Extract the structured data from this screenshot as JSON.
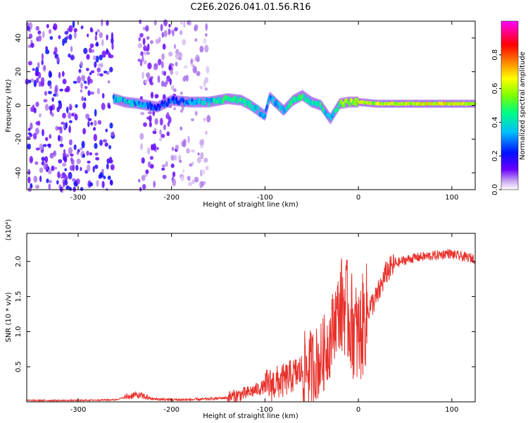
{
  "figure_title": "C2E6.2026.041.01.56.R16",
  "chart_data": [
    {
      "type": "heatmap",
      "name": "spectrogram",
      "xlabel": "Height of straight line (km)",
      "ylabel": "Frequency (Hz)",
      "xlim": [
        -355,
        125
      ],
      "ylim": [
        -50,
        50
      ],
      "xticks": [
        -300,
        -200,
        -100,
        0,
        100
      ],
      "xtick_labels": [
        "-300",
        "-200",
        "-100",
        "0",
        "100"
      ],
      "yticks": [
        -40,
        -20,
        0,
        20,
        40
      ],
      "ytick_labels": [
        "-40",
        "-20",
        "0",
        "20",
        "40"
      ],
      "colorbar": {
        "label": "Normalized spectral amplitude",
        "range": [
          0.0,
          1.0
        ],
        "ticks": [
          0.0,
          0.2,
          0.4,
          0.6,
          0.8
        ],
        "tick_labels": [
          "0.0",
          "0.2",
          "0.4",
          "0.6",
          "0.8"
        ],
        "colormap": [
          "#ffffff",
          "#b07ee8",
          "#6a00ff",
          "#0010ff",
          "#00bfff",
          "#00ff7f",
          "#7fff00",
          "#ffff00",
          "#ff7f00",
          "#ff0000",
          "#ff00ff"
        ]
      },
      "noise_regions": [
        {
          "x0": -355,
          "x1": -262,
          "amplitude": 0.25
        },
        {
          "x0": -235,
          "x1": -195,
          "amplitude": 0.18
        },
        {
          "x0": -195,
          "x1": -160,
          "amplitude": 0.1
        }
      ],
      "signal_trace": [
        {
          "x": -262,
          "f": 4,
          "amp": 0.4
        },
        {
          "x": -250,
          "f": 2,
          "amp": 0.45
        },
        {
          "x": -235,
          "f": 1,
          "amp": 0.4
        },
        {
          "x": -215,
          "f": -1,
          "amp": 0.3
        },
        {
          "x": -200,
          "f": 3,
          "amp": 0.35
        },
        {
          "x": -180,
          "f": 2,
          "amp": 0.4
        },
        {
          "x": -160,
          "f": 2,
          "amp": 0.45
        },
        {
          "x": -140,
          "f": 4,
          "amp": 0.5
        },
        {
          "x": -125,
          "f": 3,
          "amp": 0.5
        },
        {
          "x": -115,
          "f": 0,
          "amp": 0.45
        },
        {
          "x": -100,
          "f": -6,
          "amp": 0.4
        },
        {
          "x": -95,
          "f": 5,
          "amp": 0.4
        },
        {
          "x": -80,
          "f": -3,
          "amp": 0.45
        },
        {
          "x": -70,
          "f": 3,
          "amp": 0.5
        },
        {
          "x": -60,
          "f": 6,
          "amp": 0.55
        },
        {
          "x": -50,
          "f": 2,
          "amp": 0.5
        },
        {
          "x": -40,
          "f": 0,
          "amp": 0.5
        },
        {
          "x": -30,
          "f": -8,
          "amp": 0.4
        },
        {
          "x": -20,
          "f": 1,
          "amp": 0.6
        },
        {
          "x": -10,
          "f": 2,
          "amp": 0.65
        },
        {
          "x": 0,
          "f": 2,
          "amp": 0.7
        },
        {
          "x": 20,
          "f": 1,
          "amp": 0.65
        },
        {
          "x": 40,
          "f": 1,
          "amp": 0.68
        },
        {
          "x": 60,
          "f": 1,
          "amp": 0.7
        },
        {
          "x": 80,
          "f": 1,
          "amp": 0.72
        },
        {
          "x": 100,
          "f": 1,
          "amp": 0.72
        },
        {
          "x": 125,
          "f": 1,
          "amp": 0.68
        }
      ]
    },
    {
      "type": "line",
      "name": "snr",
      "xlabel": "Height of straight line (km)",
      "ylabel": "SNR (10 * v/v)",
      "scale_label": "(x10⁴)",
      "xlim": [
        -355,
        125
      ],
      "ylim": [
        0,
        2.4
      ],
      "xticks": [
        -300,
        -200,
        -100,
        0,
        100
      ],
      "xtick_labels": [
        "-300",
        "-200",
        "-100",
        "0",
        "100"
      ],
      "yticks": [
        0.5,
        1.0,
        1.5,
        2.0
      ],
      "ytick_labels": [
        "0.5",
        "1.0",
        "1.5",
        "2.0"
      ],
      "color": "#e8302a",
      "series": [
        {
          "name": "SNR",
          "x": [
            -355,
            -300,
            -260,
            -245,
            -240,
            -230,
            -220,
            -200,
            -180,
            -160,
            -140,
            -120,
            -100,
            -80,
            -60,
            -50,
            -40,
            -30,
            -25,
            -20,
            -15,
            -10,
            0,
            10,
            20,
            30,
            40,
            50,
            60,
            70,
            80,
            90,
            95,
            100,
            110,
            120,
            125
          ],
          "y": [
            0.02,
            0.02,
            0.03,
            0.08,
            0.1,
            0.08,
            0.04,
            0.03,
            0.03,
            0.04,
            0.06,
            0.12,
            0.22,
            0.3,
            0.45,
            0.5,
            0.6,
            0.9,
            1.2,
            1.3,
            1.4,
            1.2,
            0.9,
            1.3,
            1.5,
            1.85,
            1.97,
            2.02,
            2.05,
            2.07,
            2.08,
            2.1,
            2.12,
            2.1,
            2.07,
            2.05,
            2.04
          ]
        }
      ],
      "noise_amplitude": [
        {
          "x0": -355,
          "x1": -250,
          "a": 0.01
        },
        {
          "x0": -250,
          "x1": -225,
          "a": 0.05
        },
        {
          "x0": -225,
          "x1": -140,
          "a": 0.02
        },
        {
          "x0": -140,
          "x1": -100,
          "a": 0.1
        },
        {
          "x0": -100,
          "x1": -60,
          "a": 0.25
        },
        {
          "x0": -60,
          "x1": -20,
          "a": 0.55
        },
        {
          "x0": -20,
          "x1": 10,
          "a": 0.75
        },
        {
          "x0": 10,
          "x1": 40,
          "a": 0.18
        },
        {
          "x0": 40,
          "x1": 125,
          "a": 0.07
        }
      ]
    }
  ]
}
